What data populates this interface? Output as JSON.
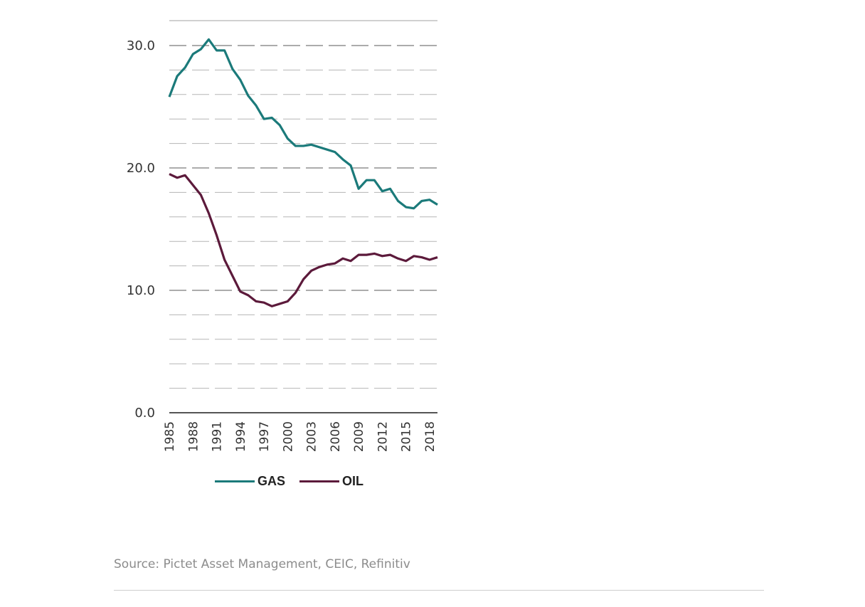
{
  "chart_data": {
    "type": "line",
    "x": [
      1985,
      1986,
      1987,
      1988,
      1989,
      1990,
      1991,
      1992,
      1993,
      1994,
      1995,
      1996,
      1997,
      1998,
      1999,
      2000,
      2001,
      2002,
      2003,
      2004,
      2005,
      2006,
      2007,
      2008,
      2009,
      2010,
      2011,
      2012,
      2013,
      2014,
      2015,
      2016,
      2017,
      2018,
      2019
    ],
    "x_tick_labels": [
      "1985",
      "1988",
      "1991",
      "1994",
      "1997",
      "2000",
      "2003",
      "2006",
      "2009",
      "2012",
      "2015",
      "2018"
    ],
    "y_tick_labels": [
      "0.0",
      "10.0",
      "20.0",
      "30.0"
    ],
    "ylim": [
      0,
      32
    ],
    "grid": "dashed horizontal gridlines every 2.0",
    "series": [
      {
        "name": "GAS",
        "color": "#1b7a7a",
        "values": [
          25.8,
          27.5,
          28.2,
          29.3,
          29.7,
          30.5,
          29.6,
          29.6,
          28.1,
          27.2,
          25.9,
          25.1,
          24.0,
          24.1,
          23.5,
          22.4,
          21.8,
          21.8,
          21.9,
          21.7,
          21.5,
          21.3,
          20.7,
          20.2,
          18.3,
          19.0,
          19.0,
          18.1,
          18.3,
          17.3,
          16.8,
          16.7,
          17.3,
          17.4,
          17.0
        ]
      },
      {
        "name": "OIL",
        "color": "#5c1a3b",
        "values": [
          19.5,
          19.2,
          19.4,
          18.6,
          17.8,
          16.3,
          14.5,
          12.5,
          11.2,
          9.9,
          9.6,
          9.1,
          9.0,
          8.7,
          8.9,
          9.1,
          9.8,
          10.9,
          11.6,
          11.9,
          12.1,
          12.2,
          12.6,
          12.4,
          12.9,
          12.9,
          13.0,
          12.8,
          12.9,
          12.6,
          12.4,
          12.8,
          12.7,
          12.5,
          12.7
        ]
      }
    ],
    "legend_position": "bottom"
  },
  "footer": {
    "source": "Source: Pictet Asset Management, CEIC, Refinitiv"
  }
}
